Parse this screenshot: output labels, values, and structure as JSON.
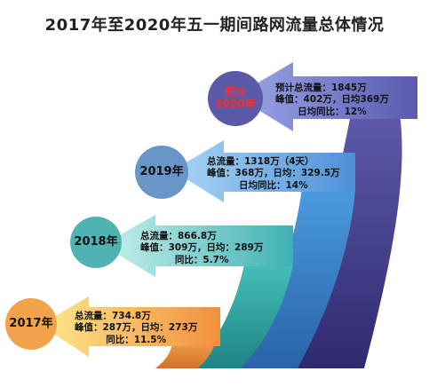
{
  "title": "2017年至2020年五一期间路网流量总体情况",
  "items": [
    {
      "year_line1": "预计",
      "year_line2": "2020年",
      "line1": "预计总流量：1845万",
      "line2": "峰值：402万，日均369万",
      "line3": "日均同比：12%",
      "color": "#5a5aa8"
    },
    {
      "year_line1": "2019年",
      "line1": "总流量：1318万（4天）",
      "line2": "峰值：368万，日均：329.5万",
      "line3": "日均同比：14%",
      "color": "#6a95c8"
    },
    {
      "year_line1": "2018年",
      "line1": "总流量：866.8万",
      "line2": "峰值：309万，日均：289万",
      "line3": "同比：5.7%",
      "color": "#4fb4b1"
    },
    {
      "year_line1": "2017年",
      "line1": "总流量：734.8万",
      "line2": "峰值：287万，日均：273万",
      "line3": "同比：11.5%",
      "color": "#f2a24a"
    }
  ]
}
